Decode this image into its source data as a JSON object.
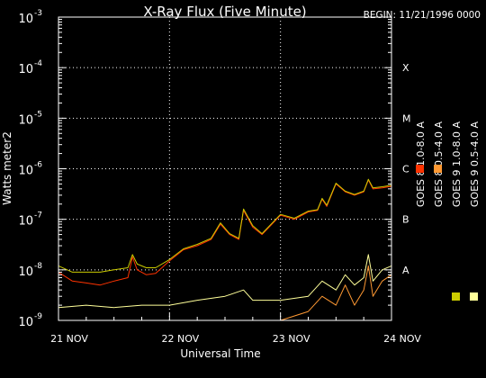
{
  "chart_data": {
    "type": "line",
    "title": "X-Ray Flux (Five Minute)",
    "begin_label": "BEGIN: 11/21/1996 0000",
    "xlabel": "Universal Time",
    "ylabel": "Watts meter2",
    "x_scale": "time",
    "x_range": [
      "1996-11-21 00:00",
      "1996-11-24 00:00"
    ],
    "x_ticks": [
      {
        "t": "1996-11-21 00:00",
        "label": "21 NOV"
      },
      {
        "t": "1996-11-22 00:00",
        "label": "22 NOV"
      },
      {
        "t": "1996-11-23 00:00",
        "label": "23 NOV"
      },
      {
        "t": "1996-11-24 00:00",
        "label": "24 NOV"
      }
    ],
    "y_scale": "log",
    "ylim": [
      1e-09,
      0.001
    ],
    "y_ticks": [
      {
        "value": 0.001,
        "mant": "10",
        "exp": "-3"
      },
      {
        "value": 0.0001,
        "mant": "10",
        "exp": "-4"
      },
      {
        "value": 1e-05,
        "mant": "10",
        "exp": "-5"
      },
      {
        "value": 1e-06,
        "mant": "10",
        "exp": "-6"
      },
      {
        "value": 1e-07,
        "mant": "10",
        "exp": "-7"
      },
      {
        "value": 1e-08,
        "mant": "10",
        "exp": "-8"
      },
      {
        "value": 1e-09,
        "mant": "10",
        "exp": "-9"
      }
    ],
    "flare_classes": [
      {
        "label": "X",
        "value": 0.0001
      },
      {
        "label": "M",
        "value": 1e-05
      },
      {
        "label": "C",
        "value": 1e-06
      },
      {
        "label": "B",
        "value": 1e-07
      },
      {
        "label": "A",
        "value": 1e-08
      }
    ],
    "grid": true,
    "legend_position": "right",
    "series": [
      {
        "name": "GOES 8 1.0-8.0 A",
        "color": "#ff3300",
        "points": [
          [
            "1996-11-21 00:00",
            9e-09
          ],
          [
            "1996-11-21 03:00",
            6e-09
          ],
          [
            "1996-11-21 06:00",
            5.5e-09
          ],
          [
            "1996-11-21 09:00",
            5e-09
          ],
          [
            "1996-11-21 12:00",
            6e-09
          ],
          [
            "1996-11-21 15:00",
            7e-09
          ],
          [
            "1996-11-21 16:00",
            1.8e-08
          ],
          [
            "1996-11-21 17:00",
            1e-08
          ],
          [
            "1996-11-21 19:00",
            8e-09
          ],
          [
            "1996-11-21 21:00",
            8.5e-09
          ],
          [
            "1996-11-22 00:00",
            1.5e-08
          ],
          [
            "1996-11-22 03:00",
            2.5e-08
          ],
          [
            "1996-11-22 06:00",
            3e-08
          ],
          [
            "1996-11-22 09:00",
            4e-08
          ],
          [
            "1996-11-22 11:00",
            8e-08
          ],
          [
            "1996-11-22 13:00",
            5e-08
          ],
          [
            "1996-11-22 15:00",
            4e-08
          ],
          [
            "1996-11-22 16:00",
            1.5e-07
          ],
          [
            "1996-11-22 18:00",
            7e-08
          ],
          [
            "1996-11-22 20:00",
            5e-08
          ],
          [
            "1996-11-23 00:00",
            1.2e-07
          ],
          [
            "1996-11-23 03:00",
            1e-07
          ],
          [
            "1996-11-23 06:00",
            1.4e-07
          ],
          [
            "1996-11-23 08:00",
            1.5e-07
          ],
          [
            "1996-11-23 09:00",
            2.5e-07
          ],
          [
            "1996-11-23 10:00",
            1.8e-07
          ],
          [
            "1996-11-23 12:00",
            5e-07
          ],
          [
            "1996-11-23 14:00",
            3.5e-07
          ],
          [
            "1996-11-23 16:00",
            3e-07
          ],
          [
            "1996-11-23 18:00",
            3.5e-07
          ],
          [
            "1996-11-23 19:00",
            6e-07
          ],
          [
            "1996-11-23 20:00",
            4e-07
          ],
          [
            "1996-11-23 22:00",
            4.2e-07
          ],
          [
            "1996-11-24 00:00",
            4.5e-07
          ]
        ]
      },
      {
        "name": "GOES 8 0.5-4.0 A",
        "color": "#ff9933",
        "points": [
          [
            "1996-11-21 00:00",
            1e-09
          ],
          [
            "1996-11-21 12:00",
            1e-09
          ],
          [
            "1996-11-22 00:00",
            1e-09
          ],
          [
            "1996-11-22 12:00",
            1e-09
          ],
          [
            "1996-11-23 00:00",
            1e-09
          ],
          [
            "1996-11-23 06:00",
            1.5e-09
          ],
          [
            "1996-11-23 09:00",
            3e-09
          ],
          [
            "1996-11-23 12:00",
            2e-09
          ],
          [
            "1996-11-23 14:00",
            5e-09
          ],
          [
            "1996-11-23 16:00",
            2e-09
          ],
          [
            "1996-11-23 18:00",
            4e-09
          ],
          [
            "1996-11-23 19:00",
            1.2e-08
          ],
          [
            "1996-11-23 20:00",
            3e-09
          ],
          [
            "1996-11-23 22:00",
            6e-09
          ],
          [
            "1996-11-24 00:00",
            8e-09
          ]
        ]
      },
      {
        "name": "GOES 9 0.5-4.0 A",
        "color": "#ffff99",
        "points": [
          [
            "1996-11-21 00:00",
            1.8e-09
          ],
          [
            "1996-11-21 06:00",
            2e-09
          ],
          [
            "1996-11-21 12:00",
            1.8e-09
          ],
          [
            "1996-11-21 18:00",
            2e-09
          ],
          [
            "1996-11-22 00:00",
            2e-09
          ],
          [
            "1996-11-22 06:00",
            2.5e-09
          ],
          [
            "1996-11-22 12:00",
            3e-09
          ],
          [
            "1996-11-22 16:00",
            4e-09
          ],
          [
            "1996-11-22 18:00",
            2.5e-09
          ],
          [
            "1996-11-23 00:00",
            2.5e-09
          ],
          [
            "1996-11-23 06:00",
            3e-09
          ],
          [
            "1996-11-23 09:00",
            6e-09
          ],
          [
            "1996-11-23 12:00",
            4e-09
          ],
          [
            "1996-11-23 14:00",
            8e-09
          ],
          [
            "1996-11-23 16:00",
            5e-09
          ],
          [
            "1996-11-23 18:00",
            7e-09
          ],
          [
            "1996-11-23 19:00",
            2e-08
          ],
          [
            "1996-11-23 20:00",
            6e-09
          ],
          [
            "1996-11-23 22:00",
            1e-08
          ],
          [
            "1996-11-24 00:00",
            1.2e-08
          ]
        ]
      },
      {
        "name": "GOES 9 1.0-8.0 A",
        "color": "#cccc00",
        "points": [
          [
            "1996-11-21 00:00",
            1.2e-08
          ],
          [
            "1996-11-21 03:00",
            9e-09
          ],
          [
            "1996-11-21 06:00",
            9e-09
          ],
          [
            "1996-11-21 09:00",
            9e-09
          ],
          [
            "1996-11-21 12:00",
            1e-08
          ],
          [
            "1996-11-21 15:00",
            1.1e-08
          ],
          [
            "1996-11-21 16:00",
            2e-08
          ],
          [
            "1996-11-21 17:00",
            1.3e-08
          ],
          [
            "1996-11-21 19:00",
            1.1e-08
          ],
          [
            "1996-11-21 21:00",
            1.1e-08
          ],
          [
            "1996-11-22 00:00",
            1.6e-08
          ],
          [
            "1996-11-22 03:00",
            2.6e-08
          ],
          [
            "1996-11-22 06:00",
            3.2e-08
          ],
          [
            "1996-11-22 09:00",
            4.2e-08
          ],
          [
            "1996-11-22 11:00",
            8.5e-08
          ],
          [
            "1996-11-22 13:00",
            5.2e-08
          ],
          [
            "1996-11-22 15:00",
            4.2e-08
          ],
          [
            "1996-11-22 16:00",
            1.6e-07
          ],
          [
            "1996-11-22 18:00",
            7.5e-08
          ],
          [
            "1996-11-22 20:00",
            5.2e-08
          ],
          [
            "1996-11-23 00:00",
            1.25e-07
          ],
          [
            "1996-11-23 03:00",
            1.05e-07
          ],
          [
            "1996-11-23 06:00",
            1.45e-07
          ],
          [
            "1996-11-23 08:00",
            1.55e-07
          ],
          [
            "1996-11-23 09:00",
            2.6e-07
          ],
          [
            "1996-11-23 10:00",
            1.9e-07
          ],
          [
            "1996-11-23 12:00",
            5.2e-07
          ],
          [
            "1996-11-23 14:00",
            3.6e-07
          ],
          [
            "1996-11-23 16:00",
            3.1e-07
          ],
          [
            "1996-11-23 18:00",
            3.6e-07
          ],
          [
            "1996-11-23 19:00",
            6.2e-07
          ],
          [
            "1996-11-23 20:00",
            4.2e-07
          ],
          [
            "1996-11-23 22:00",
            4.4e-07
          ],
          [
            "1996-11-24 00:00",
            4.7e-07
          ]
        ]
      }
    ]
  }
}
